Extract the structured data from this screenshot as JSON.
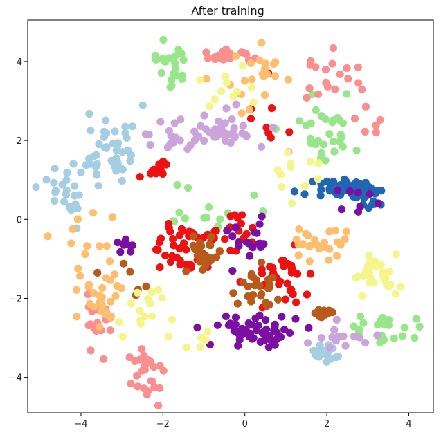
{
  "chart_data": {
    "type": "scatter",
    "title": "After training",
    "xlabel": "",
    "ylabel": "",
    "xlim": [
      -5.3,
      4.6
    ],
    "ylim": [
      -4.9,
      5.05
    ],
    "xticks": [
      -4,
      -2,
      0,
      2,
      4
    ],
    "yticks": [
      -4,
      -2,
      0,
      2,
      4
    ],
    "xtick_labels": [
      "−4",
      "−2",
      "0",
      "2",
      "4"
    ],
    "ytick_labels": [
      "−4",
      "−2",
      "0",
      "2",
      "4"
    ],
    "grid": false,
    "legend": "none",
    "series": [
      {
        "name": "cluster-light-blue",
        "color": "#a6cee3",
        "clusters": [
          {
            "center": [
              -3.3,
              1.8
            ],
            "spread": [
              0.35,
              0.55
            ],
            "n": 45,
            "seed": 11
          },
          {
            "center": [
              -4.3,
              0.7
            ],
            "spread": [
              0.3,
              0.3
            ],
            "n": 22,
            "seed": 12
          },
          {
            "center": [
              2.0,
              -3.4
            ],
            "spread": [
              0.2,
              0.15
            ],
            "n": 14,
            "seed": 13
          }
        ]
      },
      {
        "name": "cluster-blue",
        "color": "#1f66b3",
        "clusters": [
          {
            "center": [
              2.6,
              0.75
            ],
            "spread": [
              0.45,
              0.12
            ],
            "n": 55,
            "seed": 21
          },
          {
            "center": [
              3.05,
              0.35
            ],
            "spread": [
              0.12,
              0.12
            ],
            "n": 6,
            "seed": 22
          }
        ]
      },
      {
        "name": "cluster-light-green",
        "color": "#98e68a",
        "clusters": [
          {
            "center": [
              -1.9,
              3.9
            ],
            "spread": [
              0.25,
              0.3
            ],
            "n": 22,
            "seed": 31
          },
          {
            "center": [
              2.0,
              2.3
            ],
            "spread": [
              0.45,
              0.45
            ],
            "n": 30,
            "seed": 32
          },
          {
            "center": [
              3.4,
              -2.8
            ],
            "spread": [
              0.4,
              0.18
            ],
            "n": 22,
            "seed": 33
          },
          {
            "center": [
              -1.0,
              0.2
            ],
            "spread": [
              0.6,
              0.35
            ],
            "n": 14,
            "seed": 34
          }
        ]
      },
      {
        "name": "cluster-green",
        "color": "#33a02c",
        "clusters": []
      },
      {
        "name": "cluster-pink",
        "color": "#fb8f8f",
        "clusters": [
          {
            "center": [
              -2.4,
              -3.9
            ],
            "spread": [
              0.25,
              0.35
            ],
            "n": 30,
            "seed": 41
          },
          {
            "center": [
              -3.7,
              -2.6
            ],
            "spread": [
              0.22,
              0.35
            ],
            "n": 20,
            "seed": 42
          },
          {
            "center": [
              -0.5,
              4.15
            ],
            "spread": [
              0.35,
              0.12
            ],
            "n": 18,
            "seed": 43
          },
          {
            "center": [
              2.1,
              3.5
            ],
            "spread": [
              0.6,
              0.35
            ],
            "n": 18,
            "seed": 44
          },
          {
            "center": [
              3.0,
              2.7
            ],
            "spread": [
              0.3,
              0.3
            ],
            "n": 6,
            "seed": 45
          }
        ]
      },
      {
        "name": "cluster-red",
        "color": "#ee1111",
        "clusters": [
          {
            "center": [
              -1.6,
              -0.7
            ],
            "spread": [
              0.45,
              0.35
            ],
            "n": 40,
            "seed": 51
          },
          {
            "center": [
              -0.4,
              -0.3
            ],
            "spread": [
              0.35,
              0.25
            ],
            "n": 20,
            "seed": 52
          },
          {
            "center": [
              0.95,
              -1.4
            ],
            "spread": [
              0.4,
              0.35
            ],
            "n": 35,
            "seed": 53
          },
          {
            "center": [
              -2.2,
              1.3
            ],
            "spread": [
              0.2,
              0.12
            ],
            "n": 10,
            "seed": 54
          },
          {
            "center": [
              0.6,
              2.5
            ],
            "spread": [
              0.4,
              0.5
            ],
            "n": 8,
            "seed": 55
          }
        ]
      },
      {
        "name": "cluster-light-orange",
        "color": "#fdbe6e",
        "clusters": [
          {
            "center": [
              -3.6,
              -1.9
            ],
            "spread": [
              0.35,
              0.45
            ],
            "n": 30,
            "seed": 61
          },
          {
            "center": [
              1.8,
              -0.6
            ],
            "spread": [
              0.3,
              0.2
            ],
            "n": 25,
            "seed": 62
          },
          {
            "center": [
              0.0,
              3.5
            ],
            "spread": [
              0.45,
              0.45
            ],
            "n": 22,
            "seed": 63
          },
          {
            "center": [
              -3.8,
              -0.4
            ],
            "spread": [
              0.4,
              0.5
            ],
            "n": 10,
            "seed": 64
          }
        ]
      },
      {
        "name": "cluster-brown",
        "color": "#b85a1c",
        "clusters": [
          {
            "center": [
              -0.9,
              -0.9
            ],
            "spread": [
              0.25,
              0.2
            ],
            "n": 25,
            "seed": 71
          },
          {
            "center": [
              0.3,
              -1.8
            ],
            "spread": [
              0.35,
              0.3
            ],
            "n": 25,
            "seed": 72
          },
          {
            "center": [
              1.9,
              -2.3
            ],
            "spread": [
              0.18,
              0.12
            ],
            "n": 10,
            "seed": 73
          },
          {
            "center": [
              -2.9,
              -1.3
            ],
            "spread": [
              0.3,
              0.4
            ],
            "n": 6,
            "seed": 74
          }
        ]
      },
      {
        "name": "cluster-lavender",
        "color": "#cba4dc",
        "clusters": [
          {
            "center": [
              -1.0,
              2.2
            ],
            "spread": [
              0.65,
              0.3
            ],
            "n": 55,
            "seed": 81
          },
          {
            "center": [
              2.4,
              -2.95
            ],
            "spread": [
              0.35,
              0.15
            ],
            "n": 15,
            "seed": 82
          }
        ]
      },
      {
        "name": "cluster-purple",
        "color": "#7b0fa3",
        "clusters": [
          {
            "center": [
              0.25,
              -2.85
            ],
            "spread": [
              0.45,
              0.2
            ],
            "n": 55,
            "seed": 91
          },
          {
            "center": [
              0.1,
              -0.6
            ],
            "spread": [
              0.35,
              0.3
            ],
            "n": 18,
            "seed": 92
          },
          {
            "center": [
              -2.9,
              -0.8
            ],
            "spread": [
              0.2,
              0.2
            ],
            "n": 8,
            "seed": 93
          },
          {
            "center": [
              2.6,
              0.4
            ],
            "spread": [
              0.3,
              0.25
            ],
            "n": 8,
            "seed": 94
          }
        ]
      },
      {
        "name": "cluster-light-yellow",
        "color": "#f5f58a",
        "clusters": [
          {
            "center": [
              3.2,
              -1.4
            ],
            "spread": [
              0.3,
              0.25
            ],
            "n": 30,
            "seed": 101
          },
          {
            "center": [
              -2.6,
              -2.3
            ],
            "spread": [
              0.3,
              0.35
            ],
            "n": 15,
            "seed": 102
          },
          {
            "center": [
              -0.4,
              3.3
            ],
            "spread": [
              0.4,
              0.3
            ],
            "n": 12,
            "seed": 103
          },
          {
            "center": [
              1.3,
              1.2
            ],
            "spread": [
              0.4,
              0.3
            ],
            "n": 12,
            "seed": 104
          },
          {
            "center": [
              -1.3,
              -3.0
            ],
            "spread": [
              0.4,
              0.3
            ],
            "n": 6,
            "seed": 105
          }
        ]
      }
    ]
  }
}
